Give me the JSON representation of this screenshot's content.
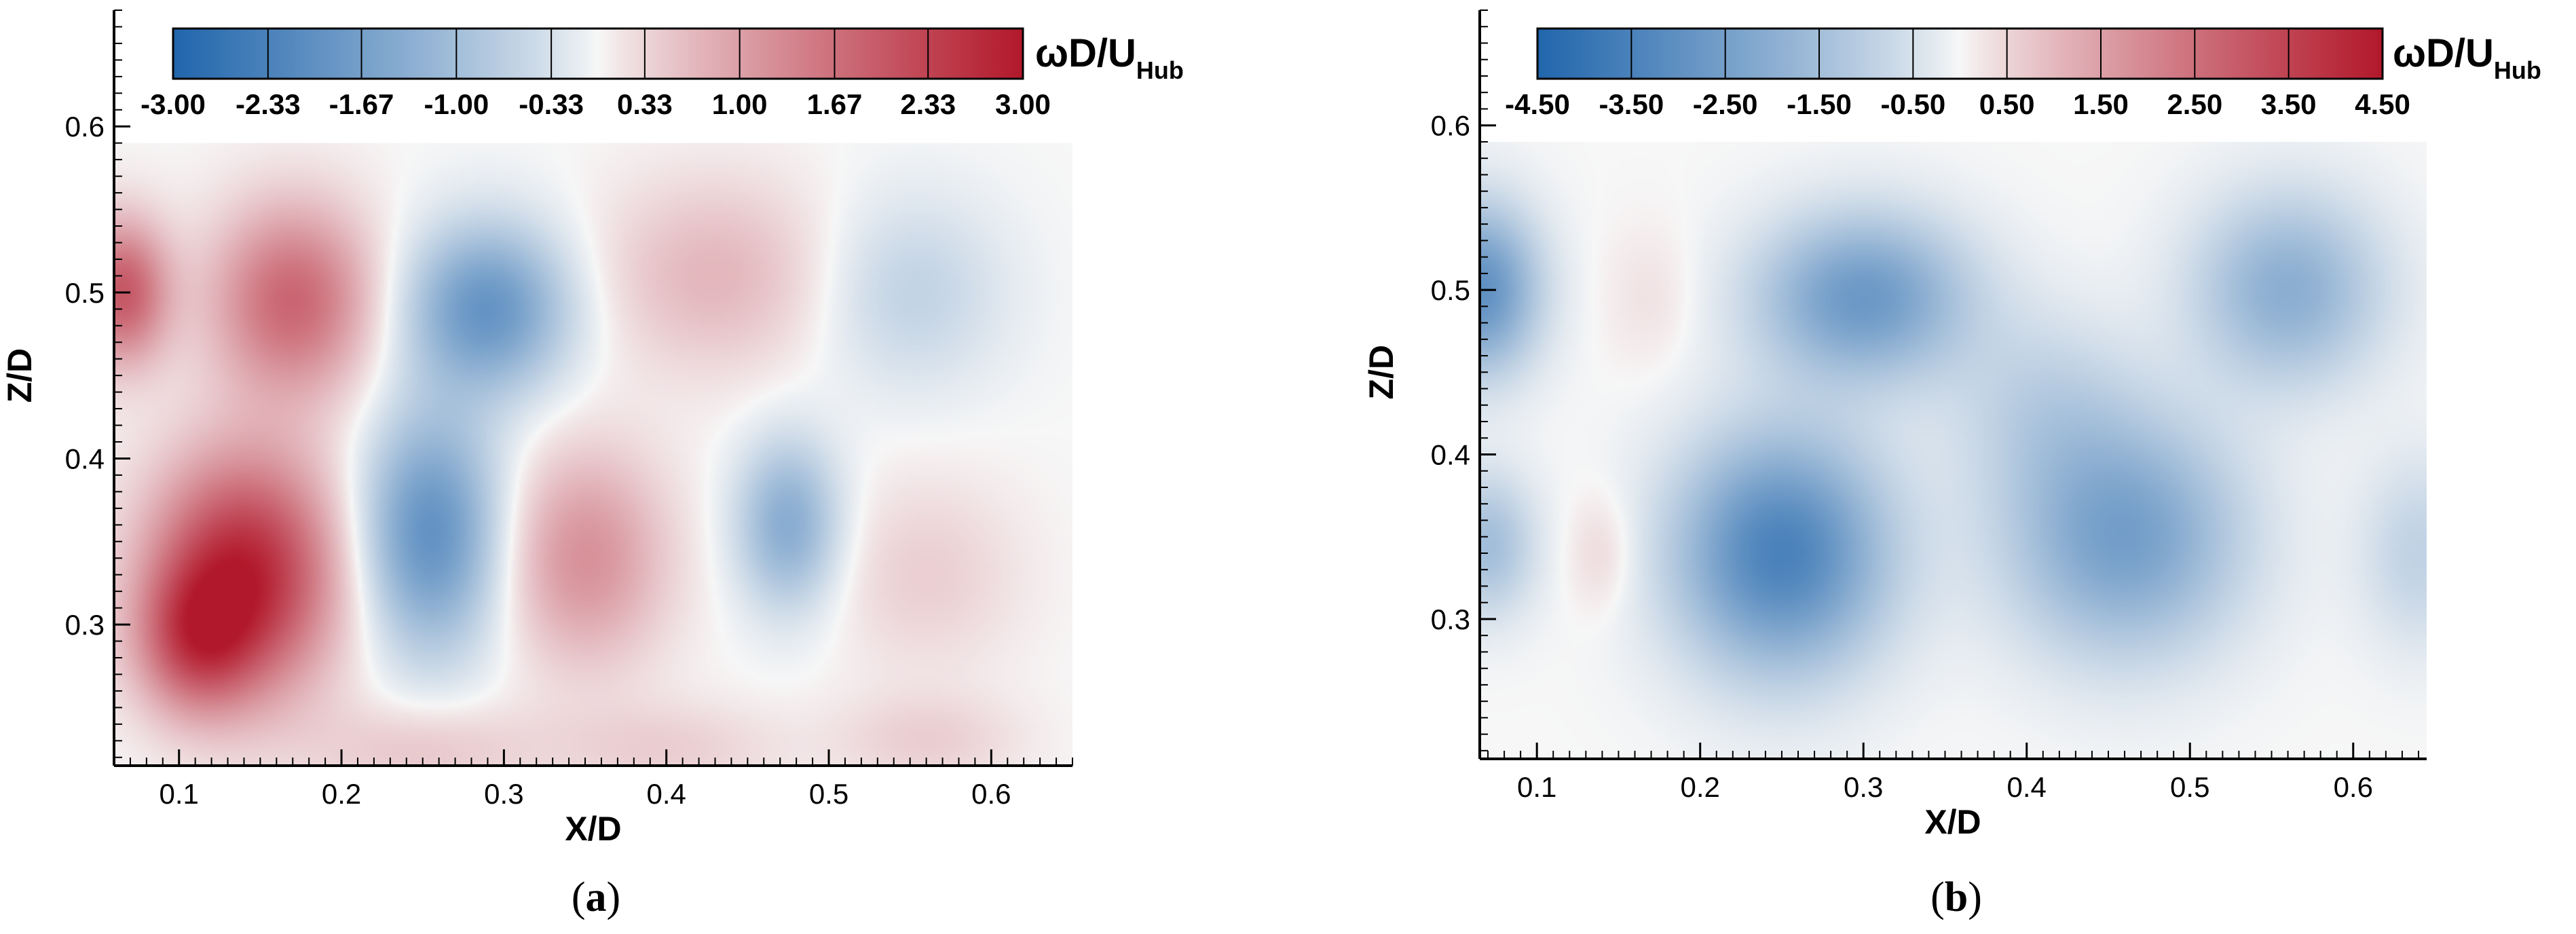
{
  "chart_data": [
    {
      "type": "heatmap",
      "panel_label": "a",
      "xlabel": "X/D",
      "ylabel": "Z/D",
      "xlim": [
        0.06,
        0.65
      ],
      "ylim": [
        0.215,
        0.67
      ],
      "data_extent": {
        "x": [
          0.06,
          0.65
        ],
        "y": [
          0.215,
          0.59
        ]
      },
      "xticks": [
        "0.1",
        "0.2",
        "0.3",
        "0.4",
        "0.5",
        "0.6"
      ],
      "yticks": [
        "0.3",
        "0.4",
        "0.5",
        "0.6"
      ],
      "colorbar": {
        "title": "ωD/U",
        "title_subscript": "Hub",
        "range": [
          -3.0,
          3.0
        ],
        "ticks": [
          "-3.00",
          "-2.33",
          "-1.67",
          "-1.00",
          "-0.33",
          "0.33",
          "1.00",
          "1.67",
          "2.33",
          "3.00"
        ],
        "colors": {
          "negative": "#2166ac",
          "zero": "#f7f7f7",
          "positive": "#b2182b"
        }
      },
      "vortices": [
        {
          "x": 0.065,
          "z": 0.5,
          "w": 2.0,
          "sx": 0.02,
          "sz": 0.03
        },
        {
          "x": 0.17,
          "z": 0.495,
          "w": 1.8,
          "sx": 0.035,
          "sz": 0.04
        },
        {
          "x": 0.14,
          "z": 0.33,
          "w": 2.8,
          "sx": 0.04,
          "sz": 0.05
        },
        {
          "x": 0.11,
          "z": 0.29,
          "w": 1.5,
          "sx": 0.025,
          "sz": 0.03
        },
        {
          "x": 0.29,
          "z": 0.49,
          "w": -1.9,
          "sx": 0.035,
          "sz": 0.035
        },
        {
          "x": 0.255,
          "z": 0.355,
          "w": -2.0,
          "sx": 0.03,
          "sz": 0.05
        },
        {
          "x": 0.35,
          "z": 0.34,
          "w": 1.2,
          "sx": 0.035,
          "sz": 0.045
        },
        {
          "x": 0.43,
          "z": 0.51,
          "w": 0.7,
          "sx": 0.05,
          "sz": 0.04
        },
        {
          "x": 0.475,
          "z": 0.36,
          "w": -1.4,
          "sx": 0.022,
          "sz": 0.035
        },
        {
          "x": 0.55,
          "z": 0.5,
          "w": -0.6,
          "sx": 0.04,
          "sz": 0.04
        },
        {
          "x": 0.56,
          "z": 0.33,
          "w": 0.4,
          "sx": 0.04,
          "sz": 0.04
        },
        {
          "x": 0.56,
          "z": 0.23,
          "w": 0.4,
          "sx": 0.04,
          "sz": 0.02
        },
        {
          "x": 0.25,
          "z": 0.225,
          "w": 0.5,
          "sx": 0.05,
          "sz": 0.02
        },
        {
          "x": 0.4,
          "z": 0.225,
          "w": 0.4,
          "sx": 0.05,
          "sz": 0.02
        }
      ]
    },
    {
      "type": "heatmap",
      "panel_label": "b",
      "xlabel": "X/D",
      "ylabel": "Z/D",
      "xlim": [
        0.065,
        0.645
      ],
      "ylim": [
        0.215,
        0.67
      ],
      "data_extent": {
        "x": [
          0.065,
          0.645
        ],
        "y": [
          0.215,
          0.59
        ]
      },
      "xticks": [
        "0.1",
        "0.2",
        "0.3",
        "0.4",
        "0.5",
        "0.6"
      ],
      "yticks": [
        "0.3",
        "0.4",
        "0.5",
        "0.6"
      ],
      "colorbar": {
        "title": "ωD/U",
        "title_subscript": "Hub",
        "range": [
          -4.5,
          4.5
        ],
        "ticks": [
          "-4.50",
          "-3.50",
          "-2.50",
          "-1.50",
          "-0.50",
          "0.50",
          "1.50",
          "2.50",
          "3.50",
          "4.50"
        ],
        "colors": {
          "negative": "#2166ac",
          "zero": "#f7f7f7",
          "positive": "#b2182b"
        }
      },
      "vortices": [
        {
          "x": 0.065,
          "z": 0.5,
          "w": -3.0,
          "sx": 0.025,
          "sz": 0.035
        },
        {
          "x": 0.3,
          "z": 0.495,
          "w": -2.7,
          "sx": 0.045,
          "sz": 0.035
        },
        {
          "x": 0.25,
          "z": 0.34,
          "w": -3.5,
          "sx": 0.045,
          "sz": 0.05
        },
        {
          "x": 0.46,
          "z": 0.35,
          "w": -2.5,
          "sx": 0.05,
          "sz": 0.05
        },
        {
          "x": 0.56,
          "z": 0.5,
          "w": -2.0,
          "sx": 0.04,
          "sz": 0.04
        },
        {
          "x": 0.07,
          "z": 0.345,
          "w": -1.5,
          "sx": 0.02,
          "sz": 0.03
        },
        {
          "x": 0.41,
          "z": 0.43,
          "w": -0.8,
          "sx": 0.04,
          "sz": 0.04
        },
        {
          "x": 0.14,
          "z": 0.34,
          "w": 0.5,
          "sx": 0.015,
          "sz": 0.025
        },
        {
          "x": 0.17,
          "z": 0.495,
          "w": 0.3,
          "sx": 0.02,
          "sz": 0.03
        },
        {
          "x": 0.64,
          "z": 0.34,
          "w": -0.9,
          "sx": 0.025,
          "sz": 0.04
        }
      ]
    }
  ]
}
